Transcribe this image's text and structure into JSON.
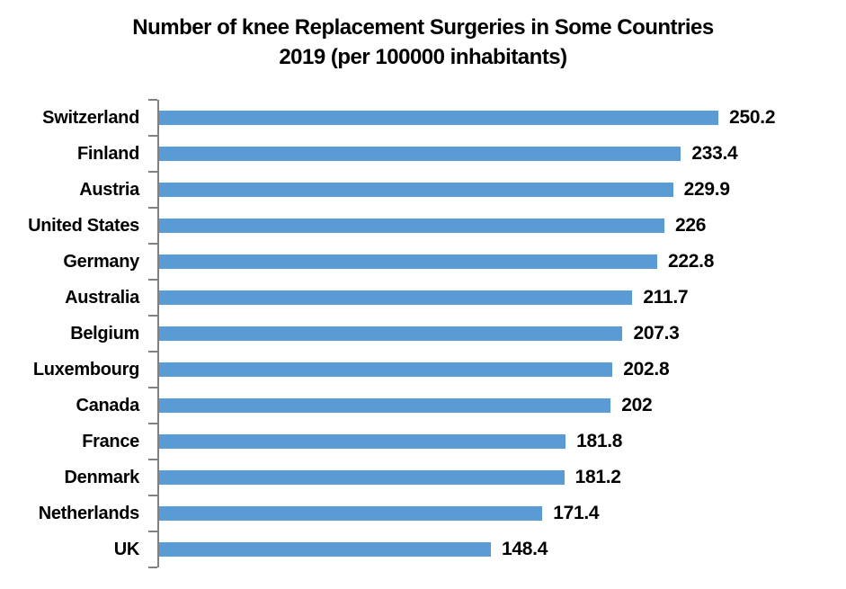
{
  "chart_data": {
    "type": "bar",
    "orientation": "horizontal",
    "title": "Number of knee Replacement Surgeries in Some Countries 2019 (per 100000 inhabitants)",
    "title_lines": [
      "Number of knee Replacement Surgeries in Some Countries",
      "2019 (per 100000 inhabitants)"
    ],
    "categories": [
      "Switzerland",
      "Finland",
      "Austria",
      "United States",
      "Germany",
      "Australia",
      "Belgium",
      "Luxembourg",
      "Canada",
      "France",
      "Denmark",
      "Netherlands",
      "UK"
    ],
    "values": [
      250.2,
      233.4,
      229.9,
      226,
      222.8,
      211.7,
      207.3,
      202.8,
      202,
      181.8,
      181.2,
      171.4,
      148.4
    ],
    "xlabel": "",
    "ylabel": "",
    "xlim": [
      0,
      300
    ],
    "grid": false,
    "legend_position": "none",
    "data_labels": true,
    "bar_color": "#5B9BD5",
    "axis_color": "#808080",
    "text_color": "#000000",
    "background_color": "#FFFFFF"
  }
}
